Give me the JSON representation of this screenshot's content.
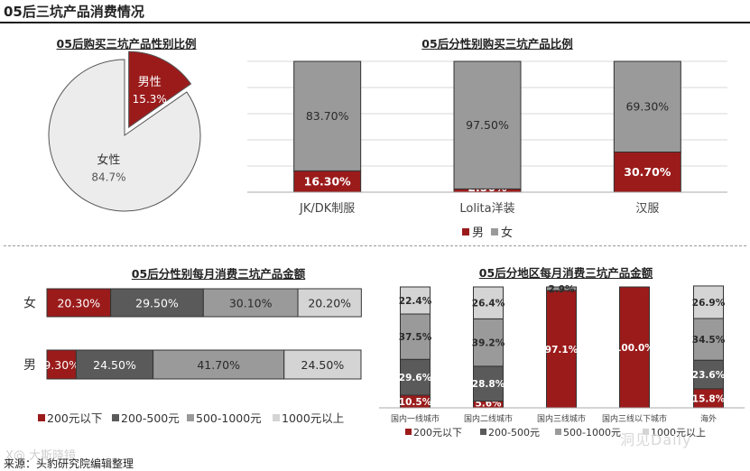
{
  "page_title": "05后三坑产品消费情况",
  "source": "来源：头豹研究院编辑整理",
  "watermark_left": "X@ 大斯晓镜",
  "watermark_right": "洞见Daily",
  "colors": {
    "dark_red": "#9b1b1b",
    "dark_gray": "#5a5a5a",
    "mid_gray": "#9a9a9a",
    "light_gray": "#d4d4d4",
    "pie_light": "#ececec"
  },
  "chart_data": [
    {
      "id": "pie",
      "type": "pie",
      "title": "05后购买三坑产品性别比例",
      "slices": [
        {
          "label": "男性",
          "value": 15.3,
          "display": "15.3%"
        },
        {
          "label": "女性",
          "value": 84.7,
          "display": "84.7%"
        }
      ]
    },
    {
      "id": "gender_share",
      "type": "bar",
      "stacked": true,
      "title": "05后分性别购买三坑产品比例",
      "categories": [
        "JK/DK制服",
        "Lolita洋装",
        "汉服"
      ],
      "series": [
        {
          "name": "男",
          "values": [
            16.3,
            2.5,
            30.7
          ],
          "labels": [
            "16.30%",
            "2.50%",
            "30.70%"
          ]
        },
        {
          "name": "女",
          "values": [
            83.7,
            97.5,
            69.3
          ],
          "labels": [
            "83.70%",
            "97.50%",
            "69.30%"
          ]
        }
      ],
      "legend": [
        "男",
        "女"
      ],
      "ylim": [
        0,
        100
      ]
    },
    {
      "id": "gender_spend",
      "type": "bar",
      "orientation": "horizontal",
      "stacked": true,
      "title": "05后分性别每月消费三坑产品金额",
      "categories": [
        "女",
        "男"
      ],
      "series": [
        {
          "name": "200元以下",
          "values": [
            20.3,
            9.3
          ],
          "labels": [
            "20.30%",
            "9.30%"
          ]
        },
        {
          "name": "200-500元",
          "values": [
            29.5,
            24.5
          ],
          "labels": [
            "29.50%",
            "24.50%"
          ]
        },
        {
          "name": "500-1000元",
          "values": [
            30.1,
            41.7
          ],
          "labels": [
            "30.10%",
            "41.70%"
          ]
        },
        {
          "name": "1000元以上",
          "values": [
            20.2,
            24.5
          ],
          "labels": [
            "20.20%",
            "24.50%"
          ]
        }
      ],
      "legend": [
        "200元以下",
        "200-500元",
        "500-1000元",
        "1000元以上"
      ]
    },
    {
      "id": "region_spend",
      "type": "bar",
      "stacked": true,
      "title": "05后分地区每月消费三坑产品金额",
      "categories": [
        "国内一线城市",
        "国内二线城市",
        "国内三线城市",
        "国内三线以下城市",
        "海外"
      ],
      "series": [
        {
          "name": "200元以下",
          "values": [
            10.5,
            5.6,
            97.1,
            100.0,
            15.8
          ],
          "labels": [
            "10.5%",
            "5.6%",
            "97.1%",
            "100.0%",
            "15.8%"
          ]
        },
        {
          "name": "200-500元",
          "values": [
            29.6,
            28.8,
            0,
            0,
            23.6
          ],
          "labels": [
            "29.6%",
            "28.8%",
            "",
            "",
            "23.6%"
          ]
        },
        {
          "name": "500-1000元",
          "values": [
            37.5,
            39.2,
            2.9,
            0,
            34.5
          ],
          "labels": [
            "37.5%",
            "39.2%",
            "2.9%",
            "",
            "34.5%"
          ]
        },
        {
          "name": "1000元以上",
          "values": [
            22.4,
            26.4,
            0,
            0,
            26.9
          ],
          "labels": [
            "22.4%",
            "26.4%",
            "",
            "",
            "26.9%"
          ]
        }
      ],
      "legend": [
        "200元以下",
        "200-500元",
        "500-1000元",
        "1000元以上"
      ],
      "ylim": [
        0,
        100
      ]
    }
  ]
}
